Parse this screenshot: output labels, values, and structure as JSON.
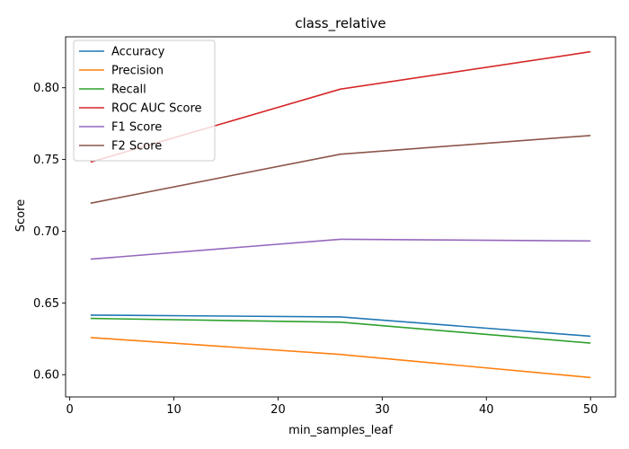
{
  "chart_data": {
    "type": "line",
    "title": "class_relative",
    "xlabel": "min_samples_leaf",
    "ylabel": "Score",
    "x": [
      2,
      26,
      50
    ],
    "xlim": [
      -0.4,
      52.4
    ],
    "ylim": [
      0.5845,
      0.8355
    ],
    "xticks": [
      0,
      10,
      20,
      30,
      40,
      50
    ],
    "yticks": [
      0.6,
      0.65,
      0.7,
      0.75,
      0.8
    ],
    "xtick_labels": [
      "0",
      "10",
      "20",
      "30",
      "40",
      "50"
    ],
    "ytick_labels": [
      "0.60",
      "0.65",
      "0.70",
      "0.75",
      "0.80"
    ],
    "grid": false,
    "legend_position": "upper-left",
    "series": [
      {
        "name": "Accuracy",
        "color": "#1f77b4",
        "values": [
          0.6415,
          0.6403,
          0.6268
        ]
      },
      {
        "name": "Precision",
        "color": "#ff7f0e",
        "values": [
          0.6259,
          0.6141,
          0.598
        ]
      },
      {
        "name": "Recall",
        "color": "#2ca02c",
        "values": [
          0.6392,
          0.6366,
          0.622
        ]
      },
      {
        "name": "ROC AUC Score",
        "color": "#d62728",
        "values": [
          0.7482,
          0.7991,
          0.8251
        ]
      },
      {
        "name": "F1 Score",
        "color": "#9467bd",
        "values": [
          0.6805,
          0.6944,
          0.6932
        ]
      },
      {
        "name": "F2 Score",
        "color": "#8c564b",
        "values": [
          0.7195,
          0.7537,
          0.7667
        ]
      }
    ]
  }
}
